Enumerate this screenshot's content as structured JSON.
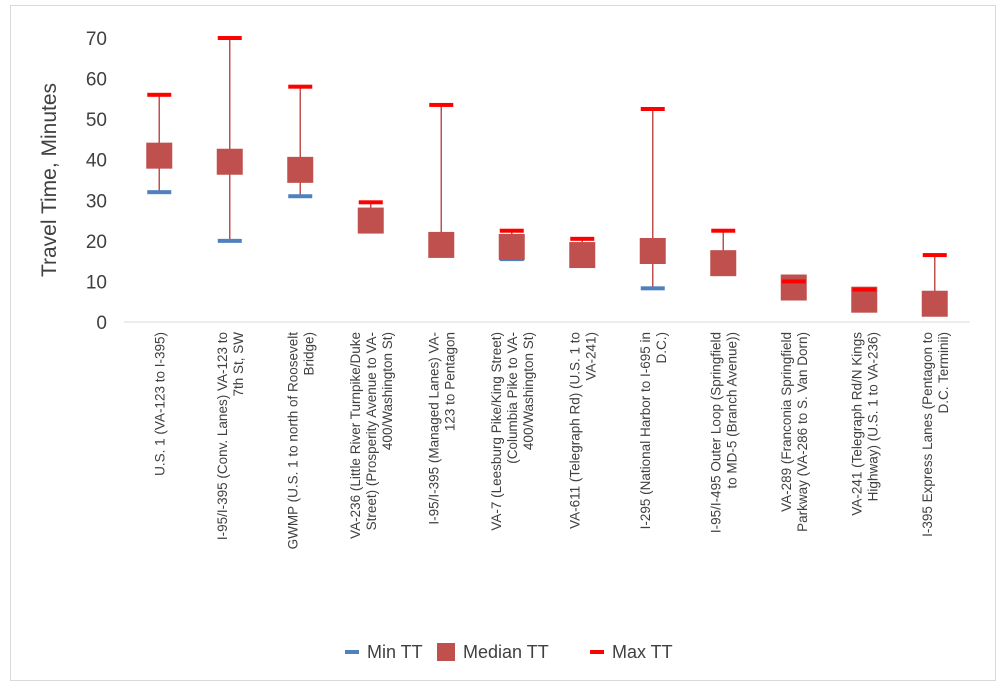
{
  "chart_data": {
    "type": "scatter",
    "title": "",
    "xlabel": "",
    "ylabel": "Travel Time, Minutes",
    "ylim": [
      0,
      70
    ],
    "yticks": [
      0,
      10,
      20,
      30,
      40,
      50,
      60,
      70
    ],
    "grid": false,
    "legend_position": "bottom",
    "categories": [
      [
        "U.S. 1 (VA-123 to I-395)"
      ],
      [
        "I-95/I-395 (Conv. Lanes) VA-123 to",
        "7th St, SW"
      ],
      [
        "GWMP (U.S. 1 to north of Roosevelt",
        "Bridge)"
      ],
      [
        "VA-236 (Little River Turnpike/Duke",
        "Street) (Prosperity Avenue to VA-",
        "400/Washington St)"
      ],
      [
        "I-95/I-395 (Managed Lanes) VA-",
        "123 to Pentagon"
      ],
      [
        "VA-7 (Leesburg Pike/King Street)",
        "(Columbia Pike to VA-",
        "400/Washington St)"
      ],
      [
        "VA-611 (Telegraph Rd) (U.S. 1 to",
        "VA-241)"
      ],
      [
        "I-295 (National Harbor to I-695 in",
        "D.C.)"
      ],
      [
        "I-95/I-495 Outer Loop (Springfield",
        "to MD-5 (Branch Avenue))"
      ],
      [
        "VA-289 (Franconia Springfield",
        "Parkway (VA-286 to S. Van Dorn)"
      ],
      [
        "VA-241 (Telegraph Rd/N Kings",
        "Highway) (U.S. 1 to VA-236)"
      ],
      [
        "I-395 Express Lanes (Pentagon to",
        "D.C. Terminii)"
      ]
    ],
    "series": [
      {
        "name": "Min TT",
        "color": "#4f81bd",
        "marker": "dash",
        "values": [
          32,
          20,
          31,
          22.5,
          16.5,
          15.5,
          15,
          8.3,
          12.5,
          7.5,
          4.5,
          3.5
        ]
      },
      {
        "name": "Median TT",
        "color": "#c0504d",
        "marker": "square",
        "values": [
          41,
          39.5,
          37.5,
          25,
          19,
          18.5,
          16.5,
          17.5,
          14.5,
          8.5,
          5.5,
          4.5
        ]
      },
      {
        "name": "Max TT",
        "color": "#ff0000",
        "marker": "dash",
        "values": [
          56,
          70,
          58,
          29.5,
          53.5,
          22.5,
          20.5,
          52.5,
          22.5,
          10,
          8,
          16.5
        ]
      }
    ]
  }
}
